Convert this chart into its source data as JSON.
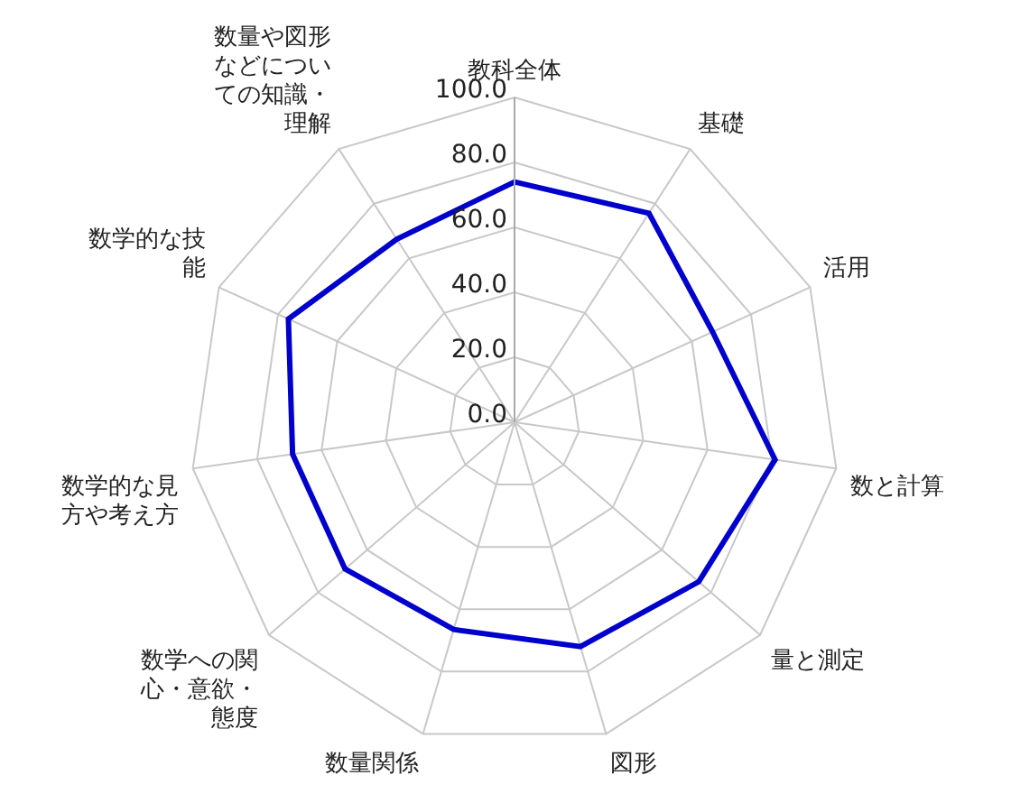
{
  "chart_data": {
    "type": "radar",
    "categories": [
      "教科全体",
      "基礎",
      "活用",
      "数と計算",
      "量と測定",
      "図形",
      "数量関係",
      "数学への関心・意欲・態度",
      "数学的な見方や考え方",
      "数学的な技能",
      "数量や図形などについての知識・理解"
    ],
    "series": [
      {
        "color": "#0000cc",
        "values": [
          74,
          76.5,
          67,
          81,
          75,
          72,
          66.5,
          69,
          69,
          76.5,
          67
        ]
      }
    ],
    "ylim": [
      0,
      100
    ],
    "yticks": [
      {
        "value": 0,
        "label": "0.0"
      },
      {
        "value": 20,
        "label": "20.0"
      },
      {
        "value": 40,
        "label": "40.0"
      },
      {
        "value": 60,
        "label": "60.0"
      },
      {
        "value": 80,
        "label": "80.0"
      },
      {
        "value": 100,
        "label": "100.0"
      }
    ],
    "grid": true,
    "marker": "none",
    "line_style": "solid"
  }
}
